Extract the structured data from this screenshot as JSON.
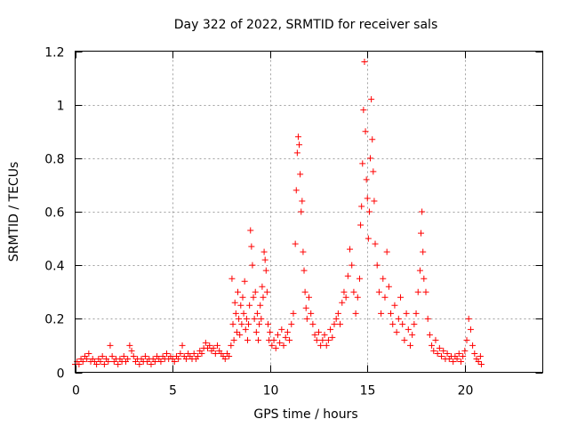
{
  "chart_data": {
    "type": "scatter",
    "title": "Day 322 of 2022, SRMTID for receiver sals",
    "xlabel": "GPS time / hours",
    "ylabel": "SRMTID / TECUs",
    "xlim": [
      0,
      24
    ],
    "ylim": [
      0,
      1.2
    ],
    "xticks": [
      0,
      5,
      10,
      15,
      20
    ],
    "xtick_labels": [
      "0",
      "5",
      "10",
      "15",
      "20"
    ],
    "yticks": [
      0,
      0.2,
      0.4,
      0.6,
      0.8,
      1,
      1.2
    ],
    "ytick_labels": [
      "0",
      "0.2",
      "0.4",
      "0.6",
      "0.8",
      "1",
      "1.2"
    ],
    "grid": true,
    "marker": "plus",
    "color": "#ff0000",
    "series": [
      {
        "name": "SRMTID",
        "points": [
          [
            0.0,
            0.03
          ],
          [
            0.1,
            0.04
          ],
          [
            0.2,
            0.03
          ],
          [
            0.3,
            0.05
          ],
          [
            0.4,
            0.04
          ],
          [
            0.5,
            0.06
          ],
          [
            0.6,
            0.05
          ],
          [
            0.7,
            0.07
          ],
          [
            0.8,
            0.04
          ],
          [
            0.9,
            0.05
          ],
          [
            1.0,
            0.04
          ],
          [
            1.1,
            0.03
          ],
          [
            1.2,
            0.05
          ],
          [
            1.3,
            0.04
          ],
          [
            1.4,
            0.06
          ],
          [
            1.5,
            0.03
          ],
          [
            1.6,
            0.05
          ],
          [
            1.7,
            0.04
          ],
          [
            1.8,
            0.1
          ],
          [
            1.9,
            0.06
          ],
          [
            2.0,
            0.04
          ],
          [
            2.1,
            0.05
          ],
          [
            2.2,
            0.03
          ],
          [
            2.3,
            0.05
          ],
          [
            2.4,
            0.04
          ],
          [
            2.5,
            0.06
          ],
          [
            2.6,
            0.04
          ],
          [
            2.7,
            0.05
          ],
          [
            2.8,
            0.1
          ],
          [
            2.9,
            0.08
          ],
          [
            3.0,
            0.06
          ],
          [
            3.1,
            0.04
          ],
          [
            3.2,
            0.05
          ],
          [
            3.3,
            0.03
          ],
          [
            3.4,
            0.05
          ],
          [
            3.5,
            0.04
          ],
          [
            3.6,
            0.06
          ],
          [
            3.7,
            0.04
          ],
          [
            3.8,
            0.05
          ],
          [
            3.9,
            0.03
          ],
          [
            4.0,
            0.05
          ],
          [
            4.1,
            0.04
          ],
          [
            4.2,
            0.06
          ],
          [
            4.3,
            0.05
          ],
          [
            4.4,
            0.04
          ],
          [
            4.5,
            0.06
          ],
          [
            4.6,
            0.05
          ],
          [
            4.7,
            0.07
          ],
          [
            4.8,
            0.05
          ],
          [
            4.9,
            0.06
          ],
          [
            5.0,
            0.05
          ],
          [
            5.1,
            0.04
          ],
          [
            5.2,
            0.06
          ],
          [
            5.3,
            0.05
          ],
          [
            5.4,
            0.07
          ],
          [
            5.5,
            0.1
          ],
          [
            5.6,
            0.06
          ],
          [
            5.7,
            0.05
          ],
          [
            5.8,
            0.07
          ],
          [
            5.9,
            0.06
          ],
          [
            6.0,
            0.05
          ],
          [
            6.1,
            0.07
          ],
          [
            6.2,
            0.05
          ],
          [
            6.3,
            0.06
          ],
          [
            6.4,
            0.08
          ],
          [
            6.5,
            0.07
          ],
          [
            6.6,
            0.09
          ],
          [
            6.7,
            0.11
          ],
          [
            6.8,
            0.09
          ],
          [
            6.9,
            0.1
          ],
          [
            7.0,
            0.08
          ],
          [
            7.1,
            0.09
          ],
          [
            7.2,
            0.07
          ],
          [
            7.3,
            0.1
          ],
          [
            7.4,
            0.08
          ],
          [
            7.5,
            0.07
          ],
          [
            7.6,
            0.06
          ],
          [
            7.7,
            0.05
          ],
          [
            7.8,
            0.07
          ],
          [
            7.9,
            0.06
          ],
          [
            8.0,
            0.1
          ],
          [
            8.05,
            0.35
          ],
          [
            8.1,
            0.18
          ],
          [
            8.15,
            0.12
          ],
          [
            8.2,
            0.26
          ],
          [
            8.25,
            0.22
          ],
          [
            8.3,
            0.15
          ],
          [
            8.35,
            0.3
          ],
          [
            8.4,
            0.2
          ],
          [
            8.45,
            0.14
          ],
          [
            8.5,
            0.25
          ],
          [
            8.55,
            0.18
          ],
          [
            8.6,
            0.28
          ],
          [
            8.65,
            0.22
          ],
          [
            8.7,
            0.34
          ],
          [
            8.75,
            0.16
          ],
          [
            8.8,
            0.2
          ],
          [
            8.85,
            0.12
          ],
          [
            8.9,
            0.18
          ],
          [
            8.95,
            0.25
          ],
          [
            9.0,
            0.53
          ],
          [
            9.05,
            0.47
          ],
          [
            9.1,
            0.4
          ],
          [
            9.15,
            0.28
          ],
          [
            9.2,
            0.2
          ],
          [
            9.25,
            0.3
          ],
          [
            9.3,
            0.15
          ],
          [
            9.35,
            0.22
          ],
          [
            9.4,
            0.12
          ],
          [
            9.45,
            0.18
          ],
          [
            9.5,
            0.25
          ],
          [
            9.55,
            0.2
          ],
          [
            9.6,
            0.32
          ],
          [
            9.65,
            0.28
          ],
          [
            9.7,
            0.45
          ],
          [
            9.75,
            0.42
          ],
          [
            9.8,
            0.38
          ],
          [
            9.85,
            0.3
          ],
          [
            9.9,
            0.18
          ],
          [
            9.95,
            0.12
          ],
          [
            10.0,
            0.15
          ],
          [
            10.1,
            0.1
          ],
          [
            10.2,
            0.12
          ],
          [
            10.3,
            0.09
          ],
          [
            10.4,
            0.14
          ],
          [
            10.5,
            0.11
          ],
          [
            10.6,
            0.16
          ],
          [
            10.7,
            0.1
          ],
          [
            10.8,
            0.13
          ],
          [
            10.9,
            0.15
          ],
          [
            11.0,
            0.12
          ],
          [
            11.1,
            0.18
          ],
          [
            11.2,
            0.22
          ],
          [
            11.3,
            0.48
          ],
          [
            11.35,
            0.68
          ],
          [
            11.4,
            0.82
          ],
          [
            11.45,
            0.88
          ],
          [
            11.5,
            0.85
          ],
          [
            11.55,
            0.74
          ],
          [
            11.6,
            0.6
          ],
          [
            11.65,
            0.64
          ],
          [
            11.7,
            0.45
          ],
          [
            11.75,
            0.38
          ],
          [
            11.8,
            0.3
          ],
          [
            11.85,
            0.24
          ],
          [
            11.9,
            0.2
          ],
          [
            12.0,
            0.28
          ],
          [
            12.1,
            0.22
          ],
          [
            12.2,
            0.18
          ],
          [
            12.3,
            0.14
          ],
          [
            12.4,
            0.12
          ],
          [
            12.5,
            0.15
          ],
          [
            12.6,
            0.1
          ],
          [
            12.7,
            0.12
          ],
          [
            12.8,
            0.14
          ],
          [
            12.9,
            0.1
          ],
          [
            13.0,
            0.12
          ],
          [
            13.1,
            0.16
          ],
          [
            13.2,
            0.13
          ],
          [
            13.3,
            0.18
          ],
          [
            13.4,
            0.2
          ],
          [
            13.5,
            0.22
          ],
          [
            13.6,
            0.18
          ],
          [
            13.7,
            0.26
          ],
          [
            13.8,
            0.3
          ],
          [
            13.9,
            0.28
          ],
          [
            14.0,
            0.36
          ],
          [
            14.1,
            0.46
          ],
          [
            14.2,
            0.4
          ],
          [
            14.3,
            0.3
          ],
          [
            14.4,
            0.22
          ],
          [
            14.5,
            0.28
          ],
          [
            14.6,
            0.35
          ],
          [
            14.65,
            0.55
          ],
          [
            14.7,
            0.62
          ],
          [
            14.75,
            0.78
          ],
          [
            14.8,
            0.98
          ],
          [
            14.85,
            1.16
          ],
          [
            14.9,
            0.9
          ],
          [
            14.95,
            0.72
          ],
          [
            15.0,
            0.65
          ],
          [
            15.05,
            0.5
          ],
          [
            15.1,
            0.6
          ],
          [
            15.15,
            0.8
          ],
          [
            15.2,
            1.02
          ],
          [
            15.25,
            0.87
          ],
          [
            15.3,
            0.75
          ],
          [
            15.35,
            0.64
          ],
          [
            15.4,
            0.48
          ],
          [
            15.5,
            0.4
          ],
          [
            15.6,
            0.3
          ],
          [
            15.7,
            0.22
          ],
          [
            15.8,
            0.35
          ],
          [
            15.9,
            0.28
          ],
          [
            16.0,
            0.45
          ],
          [
            16.1,
            0.32
          ],
          [
            16.2,
            0.22
          ],
          [
            16.3,
            0.18
          ],
          [
            16.4,
            0.25
          ],
          [
            16.5,
            0.15
          ],
          [
            16.6,
            0.2
          ],
          [
            16.7,
            0.28
          ],
          [
            16.8,
            0.18
          ],
          [
            16.9,
            0.12
          ],
          [
            17.0,
            0.22
          ],
          [
            17.1,
            0.16
          ],
          [
            17.2,
            0.1
          ],
          [
            17.3,
            0.14
          ],
          [
            17.4,
            0.18
          ],
          [
            17.5,
            0.22
          ],
          [
            17.6,
            0.3
          ],
          [
            17.7,
            0.38
          ],
          [
            17.75,
            0.52
          ],
          [
            17.8,
            0.6
          ],
          [
            17.85,
            0.45
          ],
          [
            17.9,
            0.35
          ],
          [
            18.0,
            0.3
          ],
          [
            18.1,
            0.2
          ],
          [
            18.2,
            0.14
          ],
          [
            18.3,
            0.1
          ],
          [
            18.4,
            0.08
          ],
          [
            18.5,
            0.12
          ],
          [
            18.6,
            0.07
          ],
          [
            18.7,
            0.09
          ],
          [
            18.8,
            0.06
          ],
          [
            18.9,
            0.08
          ],
          [
            19.0,
            0.05
          ],
          [
            19.1,
            0.07
          ],
          [
            19.2,
            0.05
          ],
          [
            19.3,
            0.06
          ],
          [
            19.4,
            0.04
          ],
          [
            19.5,
            0.06
          ],
          [
            19.6,
            0.05
          ],
          [
            19.7,
            0.07
          ],
          [
            19.8,
            0.04
          ],
          [
            19.9,
            0.06
          ],
          [
            20.0,
            0.08
          ],
          [
            20.1,
            0.12
          ],
          [
            20.2,
            0.2
          ],
          [
            20.3,
            0.16
          ],
          [
            20.4,
            0.1
          ],
          [
            20.5,
            0.07
          ],
          [
            20.6,
            0.05
          ],
          [
            20.7,
            0.04
          ],
          [
            20.8,
            0.06
          ],
          [
            20.85,
            0.03
          ]
        ]
      }
    ]
  }
}
